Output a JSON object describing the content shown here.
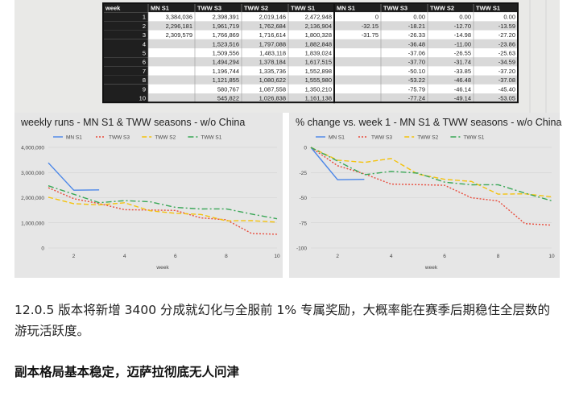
{
  "table": {
    "headers": [
      "week",
      "MN S1",
      "TWW S3",
      "TWW S2",
      "TWW S1",
      "MN S1",
      "TWW S3",
      "TWW S2",
      "TWW S1"
    ],
    "rows": [
      [
        "1",
        "3,384,036",
        "2,398,391",
        "2,019,146",
        "2,472,948",
        "0",
        "0.00",
        "0.00",
        "0.00"
      ],
      [
        "2",
        "2,296,181",
        "1,961,719",
        "1,762,684",
        "2,136,904",
        "-32.15",
        "-18.21",
        "-12.70",
        "-13.59"
      ],
      [
        "3",
        "2,309,579",
        "1,766,869",
        "1,716,614",
        "1,800,328",
        "-31.75",
        "-26.33",
        "-14.98",
        "-27.20"
      ],
      [
        "4",
        "",
        "1,523,516",
        "1,797,088",
        "1,882,848",
        "",
        "-36.48",
        "-11.00",
        "-23.86"
      ],
      [
        "5",
        "",
        "1,509,556",
        "1,483,118",
        "1,839,024",
        "",
        "-37.06",
        "-26.55",
        "-25.63"
      ],
      [
        "6",
        "",
        "1,494,294",
        "1,378,184",
        "1,617,515",
        "",
        "-37.70",
        "-31.74",
        "-34.59"
      ],
      [
        "7",
        "",
        "1,196,744",
        "1,335,736",
        "1,552,898",
        "",
        "-50.10",
        "-33.85",
        "-37.20"
      ],
      [
        "8",
        "",
        "1,121,855",
        "1,080,622",
        "1,555,980",
        "",
        "-53.22",
        "-46.48",
        "-37.08"
      ],
      [
        "9",
        "",
        "580,767",
        "1,087,558",
        "1,350,210",
        "",
        "-75.79",
        "-46.14",
        "-45.40"
      ],
      [
        "10",
        "",
        "545,822",
        "1,026,838",
        "1,161,138",
        "",
        "-77.24",
        "-49.14",
        "-53.05"
      ]
    ]
  },
  "chart_data": [
    {
      "type": "line",
      "title": "weekly runs - MN S1 & TWW seasons - w/o China",
      "xlabel": "week",
      "ylabel": "",
      "xlim": [
        1,
        10
      ],
      "ylim": [
        0,
        4000000
      ],
      "xticks": [
        "2",
        "4",
        "6",
        "8",
        "10"
      ],
      "yticks": [
        "0",
        "1,000,000",
        "2,000,000",
        "3,000,000",
        "4,000,000"
      ],
      "legend": "top-left",
      "grid": true,
      "x": [
        1,
        2,
        3,
        4,
        5,
        6,
        7,
        8,
        9,
        10
      ],
      "series": [
        {
          "name": "MN S1",
          "color": "#4a86e8",
          "dash": "solid",
          "values": [
            3384036,
            2296181,
            2309579,
            null,
            null,
            null,
            null,
            null,
            null,
            null
          ]
        },
        {
          "name": "TWW S3",
          "color": "#e84b3c",
          "dash": "dotted",
          "values": [
            2398391,
            1961719,
            1766869,
            1523516,
            1509556,
            1494294,
            1196744,
            1121855,
            580767,
            545822
          ]
        },
        {
          "name": "TWW S2",
          "color": "#f4c20d",
          "dash": "dashed",
          "values": [
            2019146,
            1762684,
            1716614,
            1797088,
            1483118,
            1378184,
            1335736,
            1080622,
            1087558,
            1026838
          ]
        },
        {
          "name": "TWW S1",
          "color": "#3aa757",
          "dash": "dashdot",
          "values": [
            2472948,
            2136904,
            1800328,
            1882848,
            1839024,
            1617515,
            1552898,
            1555980,
            1350210,
            1161138
          ]
        }
      ]
    },
    {
      "type": "line",
      "title": "% change vs. week 1 - MN S1 & TWW seasons - w/o China",
      "xlabel": "week",
      "ylabel": "",
      "xlim": [
        1,
        10
      ],
      "ylim": [
        -100,
        0
      ],
      "xticks": [
        "2",
        "4",
        "6",
        "8",
        "10"
      ],
      "yticks": [
        "0",
        "-25",
        "-50",
        "-75",
        "-100"
      ],
      "legend": "top-left",
      "grid": true,
      "x": [
        1,
        2,
        3,
        4,
        5,
        6,
        7,
        8,
        9,
        10
      ],
      "series": [
        {
          "name": "MN S1",
          "color": "#4a86e8",
          "dash": "solid",
          "values": [
            0,
            -32.15,
            -31.75,
            null,
            null,
            null,
            null,
            null,
            null,
            null
          ]
        },
        {
          "name": "TWW S3",
          "color": "#e84b3c",
          "dash": "dotted",
          "values": [
            0,
            -18.21,
            -26.33,
            -36.48,
            -37.06,
            -37.7,
            -50.1,
            -53.22,
            -75.79,
            -77.24
          ]
        },
        {
          "name": "TWW S2",
          "color": "#f4c20d",
          "dash": "dashed",
          "values": [
            0,
            -12.7,
            -14.98,
            -11.0,
            -26.55,
            -31.74,
            -33.85,
            -46.48,
            -46.14,
            -49.14
          ]
        },
        {
          "name": "TWW S1",
          "color": "#3aa757",
          "dash": "dashdot",
          "values": [
            0,
            -13.59,
            -27.2,
            -23.86,
            -25.63,
            -34.59,
            -37.2,
            -37.08,
            -45.4,
            -53.05
          ]
        }
      ]
    }
  ],
  "article": {
    "paragraph": "12.0.5 版本将新增 3400 分成就幻化与全服前 1% 专属奖励，大概率能在赛季后期稳住全层数的游玩活跃度。",
    "heading": "副本格局基本稳定，迈萨拉彻底无人问津"
  }
}
